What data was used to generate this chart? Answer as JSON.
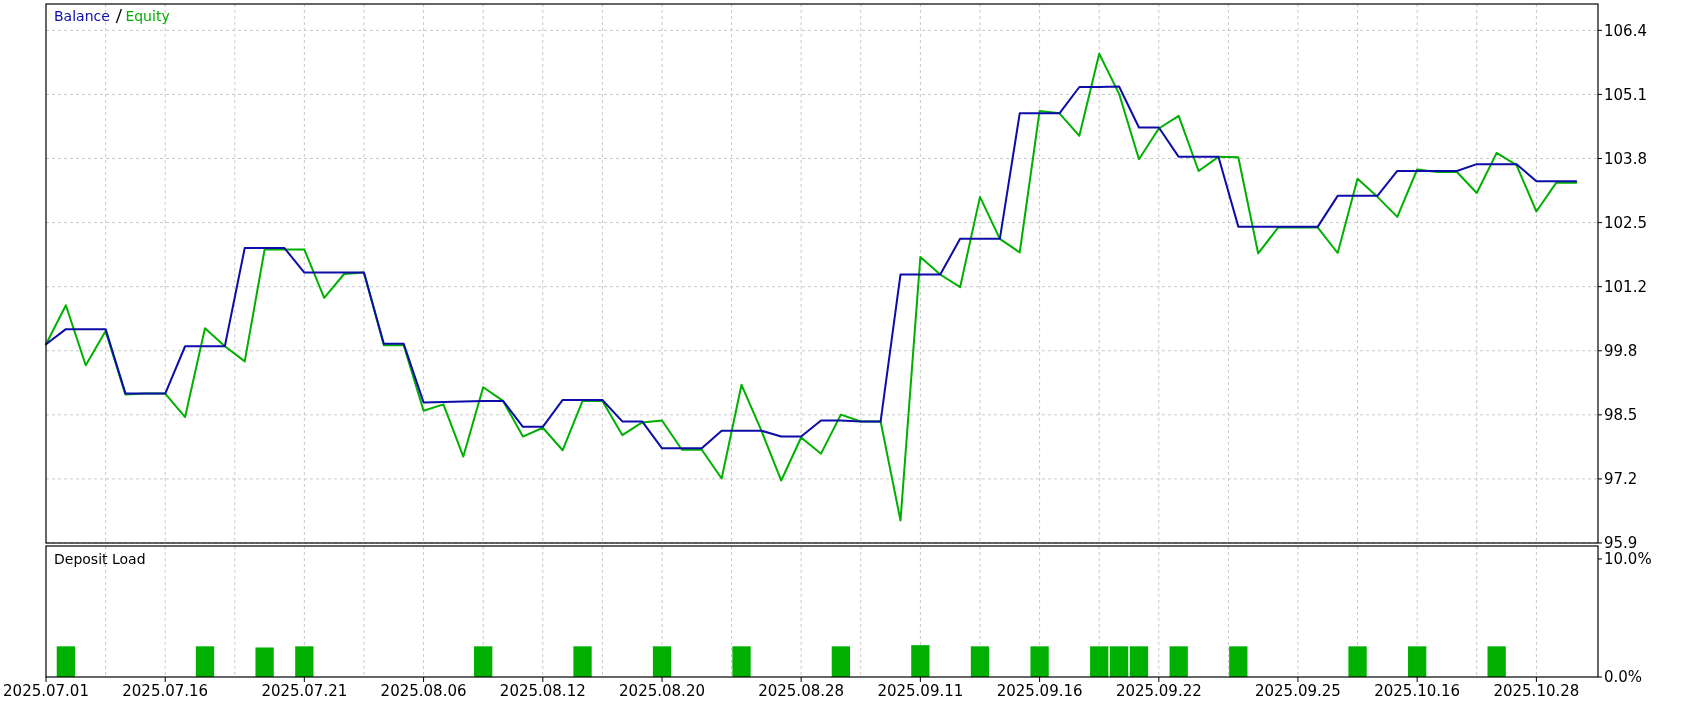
{
  "chart_data": [
    {
      "type": "line",
      "legend": "top left",
      "grid": true,
      "tick_labels": "y",
      "categories": [
        "2025.07.01",
        null,
        null,
        null,
        null,
        null,
        "2025.07.16",
        null,
        null,
        null,
        null,
        null,
        null,
        "2025.07.21",
        null,
        null,
        null,
        null,
        null,
        "2025.08.06",
        null,
        null,
        null,
        null,
        null,
        "2025.08.12",
        null,
        null,
        null,
        null,
        null,
        "2025.08.20",
        null,
        null,
        null,
        null,
        null,
        null,
        "2025.08.28",
        null,
        null,
        null,
        null,
        null,
        "2025.09.11",
        null,
        null,
        null,
        null,
        null,
        "2025.09.16",
        null,
        null,
        null,
        null,
        null,
        "2025.09.22",
        null,
        null,
        null,
        null,
        null,
        null,
        "2025.09.25",
        null,
        null,
        null,
        null,
        null,
        "2025.10.16",
        null,
        null,
        null,
        null,
        null,
        "2025.10.28",
        null,
        null
      ],
      "ylim": [
        95.9,
        106.94
      ],
      "yticks": [
        {
          "value": 95.9,
          "label": "95.9"
        },
        {
          "value": 97.2125,
          "label": "97.2"
        },
        {
          "value": 98.525,
          "label": "98.5"
        },
        {
          "value": 99.8375,
          "label": "99.8"
        },
        {
          "value": 101.15,
          "label": "101.2"
        },
        {
          "value": 102.4625,
          "label": "102.5"
        },
        {
          "value": 103.775,
          "label": "103.8"
        },
        {
          "value": 105.0875,
          "label": "105.1"
        },
        {
          "value": 106.4,
          "label": "106.4"
        }
      ],
      "series": [
        {
          "name": "Balance",
          "color": "#0c0ca8",
          "values": [
            99.97,
            100.28,
            100.28,
            100.28,
            98.96,
            98.96,
            98.96,
            99.93,
            99.93,
            99.93,
            101.94,
            101.94,
            101.94,
            101.44,
            101.44,
            101.44,
            101.44,
            99.98,
            99.98,
            98.78,
            98.79,
            98.8,
            98.81,
            98.81,
            98.28,
            98.28,
            98.83,
            98.83,
            98.83,
            98.39,
            98.39,
            97.84,
            97.84,
            97.84,
            98.2,
            98.2,
            98.2,
            98.08,
            98.08,
            98.41,
            98.41,
            98.39,
            98.39,
            101.4,
            101.4,
            101.4,
            102.13,
            102.13,
            102.13,
            104.7,
            104.7,
            104.7,
            105.24,
            105.24,
            105.25,
            104.41,
            104.41,
            103.81,
            103.81,
            103.81,
            102.38,
            102.38,
            102.38,
            102.38,
            102.38,
            103.01,
            103.01,
            103.01,
            103.52,
            103.52,
            103.52,
            103.52,
            103.66,
            103.66,
            103.66,
            103.31,
            103.31,
            103.31
          ]
        },
        {
          "name": "Equity",
          "color": "#00b000",
          "values": [
            99.97,
            100.77,
            99.54,
            100.24,
            98.94,
            98.96,
            98.96,
            98.48,
            100.3,
            99.93,
            99.62,
            101.91,
            101.91,
            101.91,
            100.92,
            101.41,
            101.44,
            99.95,
            99.95,
            98.61,
            98.74,
            97.67,
            99.09,
            98.81,
            98.08,
            98.26,
            97.8,
            98.81,
            98.81,
            98.11,
            98.37,
            98.41,
            97.81,
            97.81,
            97.22,
            99.14,
            98.2,
            97.18,
            98.06,
            97.73,
            98.53,
            98.39,
            98.39,
            96.36,
            101.76,
            101.4,
            101.14,
            102.99,
            102.13,
            101.85,
            104.75,
            104.7,
            104.24,
            105.92,
            105.1,
            103.76,
            104.39,
            104.65,
            103.52,
            103.81,
            103.8,
            101.83,
            102.36,
            102.36,
            102.36,
            101.84,
            103.36,
            102.99,
            102.58,
            103.55,
            103.5,
            103.5,
            103.07,
            103.89,
            103.64,
            102.69,
            103.28,
            103.28
          ]
        }
      ]
    },
    {
      "type": "bar",
      "title": "Deposit Load",
      "grid": "x",
      "color": "#00b000",
      "categories": [
        "2025.07.01",
        null,
        null,
        null,
        null,
        null,
        "2025.07.16",
        null,
        null,
        null,
        null,
        null,
        null,
        "2025.07.21",
        null,
        null,
        null,
        null,
        null,
        "2025.08.06",
        null,
        null,
        null,
        null,
        null,
        "2025.08.12",
        null,
        null,
        null,
        null,
        null,
        "2025.08.20",
        null,
        null,
        null,
        null,
        null,
        null,
        "2025.08.28",
        null,
        null,
        null,
        null,
        null,
        "2025.09.11",
        null,
        null,
        null,
        null,
        null,
        "2025.09.16",
        null,
        null,
        null,
        null,
        null,
        "2025.09.22",
        null,
        null,
        null,
        null,
        null,
        null,
        "2025.09.25",
        null,
        null,
        null,
        null,
        null,
        "2025.10.16",
        null,
        null,
        null,
        null,
        null,
        "2025.10.28",
        null,
        null
      ],
      "values": [
        null,
        2.6,
        null,
        null,
        null,
        null,
        null,
        null,
        2.6,
        null,
        null,
        2.5,
        null,
        2.6,
        null,
        null,
        null,
        null,
        null,
        null,
        null,
        null,
        2.6,
        null,
        null,
        null,
        null,
        2.6,
        null,
        null,
        null,
        2.6,
        null,
        null,
        null,
        2.6,
        null,
        null,
        null,
        null,
        2.6,
        null,
        null,
        null,
        2.7,
        null,
        null,
        2.6,
        null,
        null,
        2.6,
        null,
        null,
        2.6,
        2.6,
        2.6,
        null,
        2.6,
        null,
        null,
        2.6,
        null,
        null,
        null,
        null,
        null,
        2.6,
        null,
        null,
        2.6,
        null,
        null,
        null,
        2.6,
        null,
        null,
        null,
        null
      ],
      "ylim": [
        0,
        11.1
      ],
      "yticks": [
        {
          "value": 0,
          "label": "0.0%"
        },
        {
          "value": 10,
          "label": "10.0%"
        }
      ]
    }
  ]
}
